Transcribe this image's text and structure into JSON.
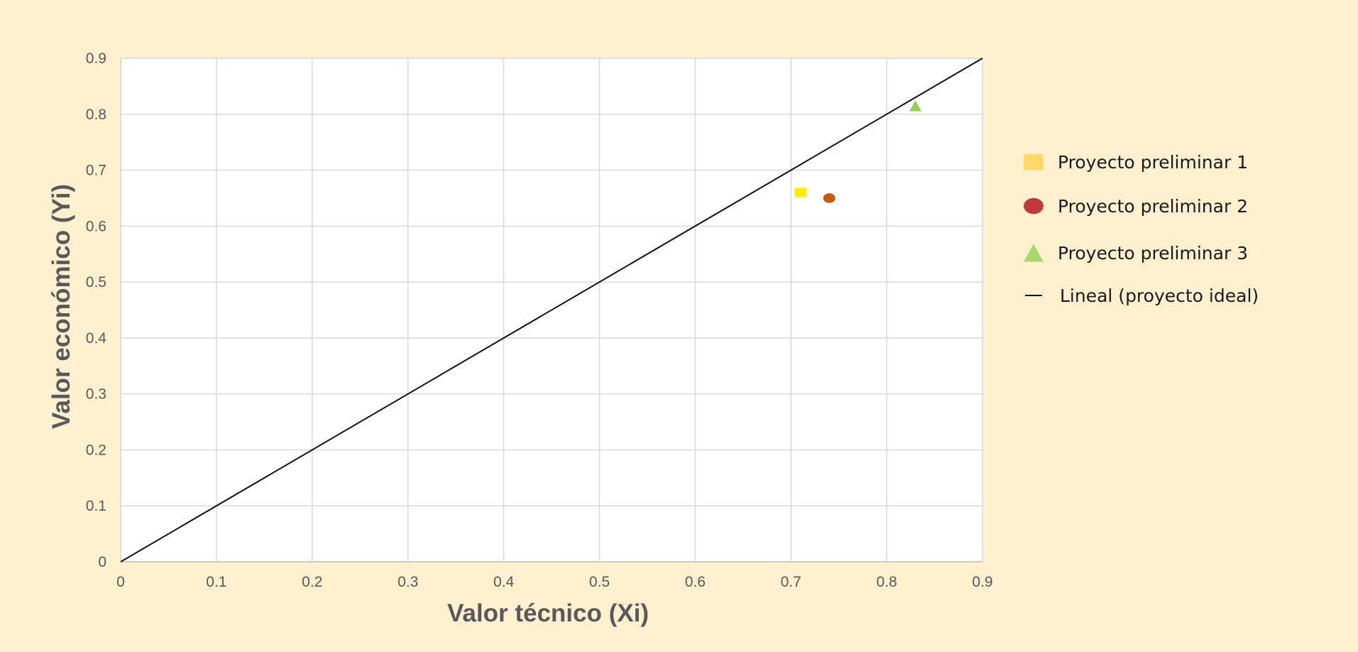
{
  "chart_data": {
    "type": "scatter",
    "title": "",
    "xlabel": "Valor técnico (Xi)",
    "ylabel": "Valor económico (Yi)",
    "xlim": [
      0,
      0.9
    ],
    "ylim": [
      0,
      0.9
    ],
    "xticks": [
      "0",
      "0.1",
      "0.2",
      "0.3",
      "0.4",
      "0.5",
      "0.6",
      "0.7",
      "0.8",
      "0.9"
    ],
    "yticks": [
      "0",
      "0.1",
      "0.2",
      "0.3",
      "0.4",
      "0.5",
      "0.6",
      "0.7",
      "0.8",
      "0.9"
    ],
    "grid": true,
    "legend_position": "right",
    "series": [
      {
        "name": "Proyecto preliminar 1",
        "marker": "square",
        "color": "#ffee00",
        "legend_color": "#ffd966",
        "points": [
          {
            "x": 0.71,
            "y": 0.66
          }
        ]
      },
      {
        "name": "Proyecto preliminar 2",
        "marker": "circle",
        "color": "#c55a11",
        "legend_color": "#c0393b",
        "points": [
          {
            "x": 0.74,
            "y": 0.65
          }
        ]
      },
      {
        "name": "Proyecto preliminar 3",
        "marker": "triangle",
        "color": "#92d050",
        "legend_color": "#a9d86e",
        "points": [
          {
            "x": 0.83,
            "y": 0.815
          }
        ]
      }
    ],
    "trendline": {
      "name": "Lineal (proyecto ideal)",
      "color": "#111111",
      "from": {
        "x": 0,
        "y": 0
      },
      "to": {
        "x": 0.9,
        "y": 0.9
      }
    },
    "colors": {
      "background": "#fff1cf",
      "plot_background": "#ffffff",
      "grid": "#d9d9d9",
      "axis_text": "#595959"
    }
  }
}
